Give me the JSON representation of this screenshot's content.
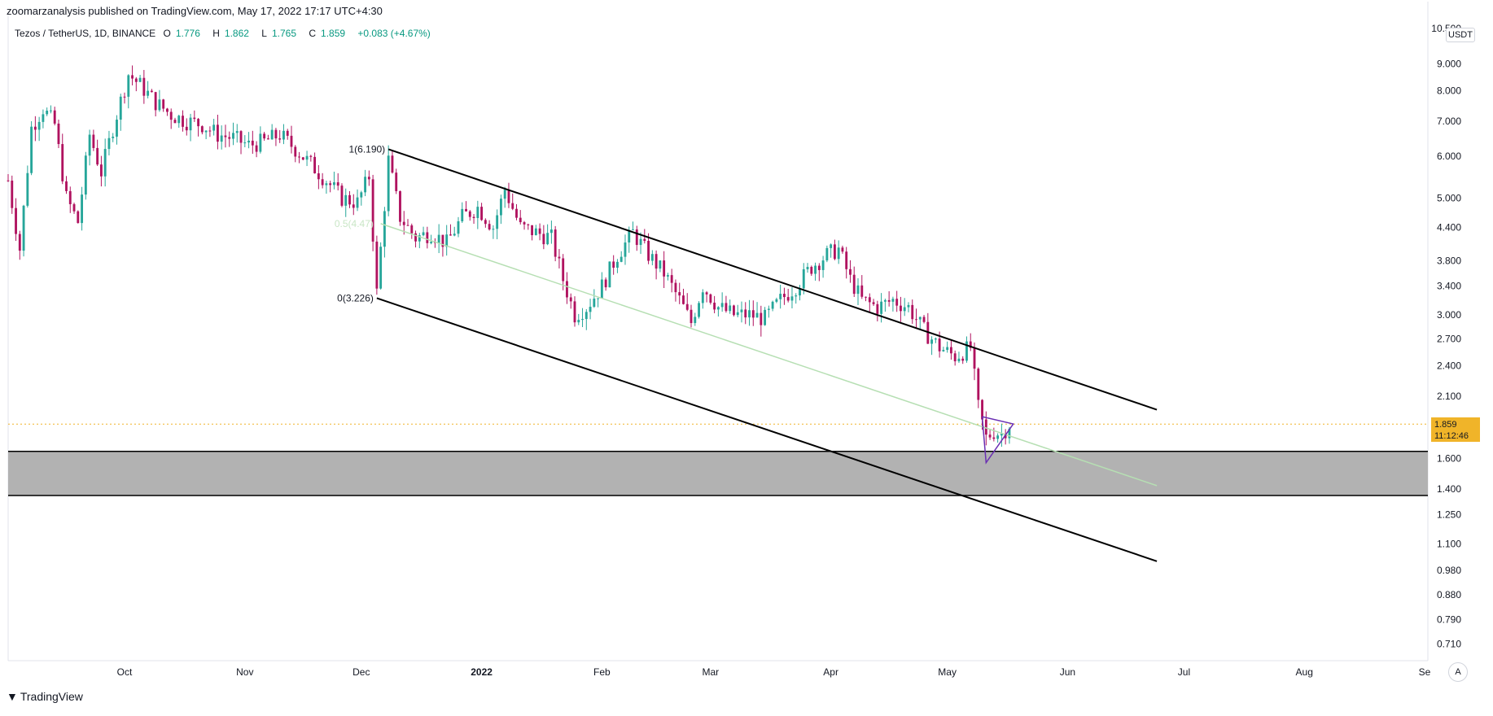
{
  "header": {
    "publisher": "zoomarzanalysis published on TradingView.com, May 17, 2022 17:17 UTC+4:30"
  },
  "symbol": {
    "name": "Tezos / TetherUS, 1D, BINANCE",
    "o_label": "O",
    "o_value": "1.776",
    "h_label": "H",
    "h_value": "1.862",
    "l_label": "L",
    "l_value": "1.765",
    "c_label": "C",
    "c_value": "1.859",
    "change": "+0.083 (+4.67%)"
  },
  "price_axis": {
    "currency": "USDT",
    "last_price": "1.859",
    "countdown": "11:12:46"
  },
  "footer": {
    "brand": "TradingView",
    "auto_label": "A"
  },
  "colors": {
    "up": "#26a69a",
    "down": "#b0125f",
    "zone": "#b2b2b2",
    "channel": "#000000",
    "midline": "#b6dfb3",
    "triangle": "#6a2fb3",
    "price_tag": "#f0b429",
    "price_line": "#f0b429"
  },
  "chart_data": {
    "type": "candlestick",
    "title": "Tezos / TetherUS, 1D, BINANCE",
    "scale": "log",
    "y_ticks": [
      0.71,
      0.79,
      0.88,
      0.98,
      1.1,
      1.25,
      1.4,
      1.6,
      2.1,
      2.4,
      2.7,
      3.0,
      3.4,
      3.8,
      4.4,
      5.0,
      6.0,
      7.0,
      8.0,
      9.0,
      10.5
    ],
    "y_tick_labels": [
      "0.710",
      "0.790",
      "0.880",
      "0.980",
      "1.100",
      "1.250",
      "1.400",
      "1.600",
      "2.100",
      "2.400",
      "2.700",
      "3.000",
      "3.400",
      "3.800",
      "4.400",
      "5.000",
      "6.000",
      "7.000",
      "8.000",
      "9.000",
      "10.500"
    ],
    "x_ticks": [
      {
        "label": "Oct",
        "date": "2021-10-01"
      },
      {
        "label": "Nov",
        "date": "2021-11-01"
      },
      {
        "label": "Dec",
        "date": "2021-12-01"
      },
      {
        "label": "2022",
        "date": "2022-01-01"
      },
      {
        "label": "Feb",
        "date": "2022-02-01"
      },
      {
        "label": "Mar",
        "date": "2022-03-01"
      },
      {
        "label": "Apr",
        "date": "2022-04-01"
      },
      {
        "label": "May",
        "date": "2022-05-01"
      },
      {
        "label": "Jun",
        "date": "2022-06-01"
      },
      {
        "label": "Jul",
        "date": "2022-07-01"
      },
      {
        "label": "Aug",
        "date": "2022-08-01"
      },
      {
        "label": "Se",
        "date": "2022-09-01"
      }
    ],
    "x_range": [
      "2021-09-01",
      "2022-09-01"
    ],
    "y_range": [
      0.66,
      11.0
    ],
    "close_path": [
      {
        "date": "2021-09-01",
        "close": 5.4
      },
      {
        "date": "2021-09-04",
        "close": 4.0
      },
      {
        "date": "2021-09-07",
        "close": 6.8
      },
      {
        "date": "2021-09-10",
        "close": 7.4
      },
      {
        "date": "2021-09-13",
        "close": 6.9
      },
      {
        "date": "2021-09-16",
        "close": 5.0
      },
      {
        "date": "2021-09-19",
        "close": 4.5
      },
      {
        "date": "2021-09-22",
        "close": 6.6
      },
      {
        "date": "2021-09-25",
        "close": 5.6
      },
      {
        "date": "2021-09-28",
        "close": 6.8
      },
      {
        "date": "2021-10-02",
        "close": 8.6
      },
      {
        "date": "2021-10-05",
        "close": 8.2
      },
      {
        "date": "2021-10-09",
        "close": 7.6
      },
      {
        "date": "2021-10-13",
        "close": 7.2
      },
      {
        "date": "2021-10-17",
        "close": 7.0
      },
      {
        "date": "2021-10-21",
        "close": 6.9
      },
      {
        "date": "2021-10-25",
        "close": 6.6
      },
      {
        "date": "2021-10-29",
        "close": 6.5
      },
      {
        "date": "2021-11-02",
        "close": 6.3
      },
      {
        "date": "2021-11-06",
        "close": 6.4
      },
      {
        "date": "2021-11-10",
        "close": 6.6
      },
      {
        "date": "2021-11-14",
        "close": 6.2
      },
      {
        "date": "2021-11-18",
        "close": 5.8
      },
      {
        "date": "2021-11-22",
        "close": 5.4
      },
      {
        "date": "2021-11-26",
        "close": 5.0
      },
      {
        "date": "2021-11-30",
        "close": 4.9
      },
      {
        "date": "2021-12-03",
        "close": 5.5
      },
      {
        "date": "2021-12-05",
        "close": 3.3
      },
      {
        "date": "2021-12-08",
        "close": 5.9
      },
      {
        "date": "2021-12-11",
        "close": 4.6
      },
      {
        "date": "2021-12-15",
        "close": 4.2
      },
      {
        "date": "2021-12-19",
        "close": 4.3
      },
      {
        "date": "2021-12-23",
        "close": 4.1
      },
      {
        "date": "2021-12-27",
        "close": 4.6
      },
      {
        "date": "2021-12-31",
        "close": 4.8
      },
      {
        "date": "2022-01-04",
        "close": 4.4
      },
      {
        "date": "2022-01-07",
        "close": 5.2
      },
      {
        "date": "2022-01-11",
        "close": 4.4
      },
      {
        "date": "2022-01-15",
        "close": 4.3
      },
      {
        "date": "2022-01-19",
        "close": 4.2
      },
      {
        "date": "2022-01-22",
        "close": 3.5
      },
      {
        "date": "2022-01-25",
        "close": 3.0
      },
      {
        "date": "2022-01-28",
        "close": 3.1
      },
      {
        "date": "2022-02-01",
        "close": 3.4
      },
      {
        "date": "2022-02-05",
        "close": 3.9
      },
      {
        "date": "2022-02-09",
        "close": 4.3
      },
      {
        "date": "2022-02-13",
        "close": 3.9
      },
      {
        "date": "2022-02-17",
        "close": 3.6
      },
      {
        "date": "2022-02-21",
        "close": 3.2
      },
      {
        "date": "2022-02-24",
        "close": 2.9
      },
      {
        "date": "2022-02-27",
        "close": 3.4
      },
      {
        "date": "2022-03-03",
        "close": 3.1
      },
      {
        "date": "2022-03-07",
        "close": 3.0
      },
      {
        "date": "2022-03-11",
        "close": 3.0
      },
      {
        "date": "2022-03-15",
        "close": 2.95
      },
      {
        "date": "2022-03-19",
        "close": 3.2
      },
      {
        "date": "2022-03-23",
        "close": 3.4
      },
      {
        "date": "2022-03-27",
        "close": 3.7
      },
      {
        "date": "2022-03-31",
        "close": 3.9
      },
      {
        "date": "2022-04-03",
        "close": 4.0
      },
      {
        "date": "2022-04-06",
        "close": 3.5
      },
      {
        "date": "2022-04-09",
        "close": 3.2
      },
      {
        "date": "2022-04-13",
        "close": 3.1
      },
      {
        "date": "2022-04-17",
        "close": 3.2
      },
      {
        "date": "2022-04-21",
        "close": 3.1
      },
      {
        "date": "2022-04-25",
        "close": 2.8
      },
      {
        "date": "2022-04-29",
        "close": 2.6
      },
      {
        "date": "2022-05-03",
        "close": 2.5
      },
      {
        "date": "2022-05-07",
        "close": 2.6
      },
      {
        "date": "2022-05-09",
        "close": 2.0
      },
      {
        "date": "2022-05-11",
        "close": 1.75
      },
      {
        "date": "2022-05-13",
        "close": 1.8
      },
      {
        "date": "2022-05-15",
        "close": 1.78
      },
      {
        "date": "2022-05-17",
        "close": 1.859
      }
    ],
    "support_zone": {
      "low": 1.36,
      "high": 1.65
    },
    "current_price": 1.859,
    "channel": {
      "upper": [
        {
          "date": "2021-12-08",
          "price": 6.19
        },
        {
          "date": "2022-06-24",
          "price": 1.98
        }
      ],
      "lower": [
        {
          "date": "2021-12-05",
          "price": 3.226
        },
        {
          "date": "2022-06-24",
          "price": 1.02
        }
      ],
      "mid": [
        {
          "date": "2021-12-06",
          "price": 4.47
        },
        {
          "date": "2022-06-24",
          "price": 1.42
        }
      ]
    },
    "annotations": [
      {
        "text": "1(6.190)",
        "date": "2021-12-08",
        "price": 6.19
      },
      {
        "text": "0(3.226)",
        "date": "2021-12-05",
        "price": 3.226
      },
      {
        "text": "0.5(4.47)",
        "date": "2021-12-05",
        "price": 4.47
      }
    ],
    "triangle": [
      {
        "date": "2022-05-10",
        "price": 1.92
      },
      {
        "date": "2022-05-18",
        "price": 1.86
      },
      {
        "date": "2022-05-11",
        "price": 1.57
      }
    ]
  }
}
